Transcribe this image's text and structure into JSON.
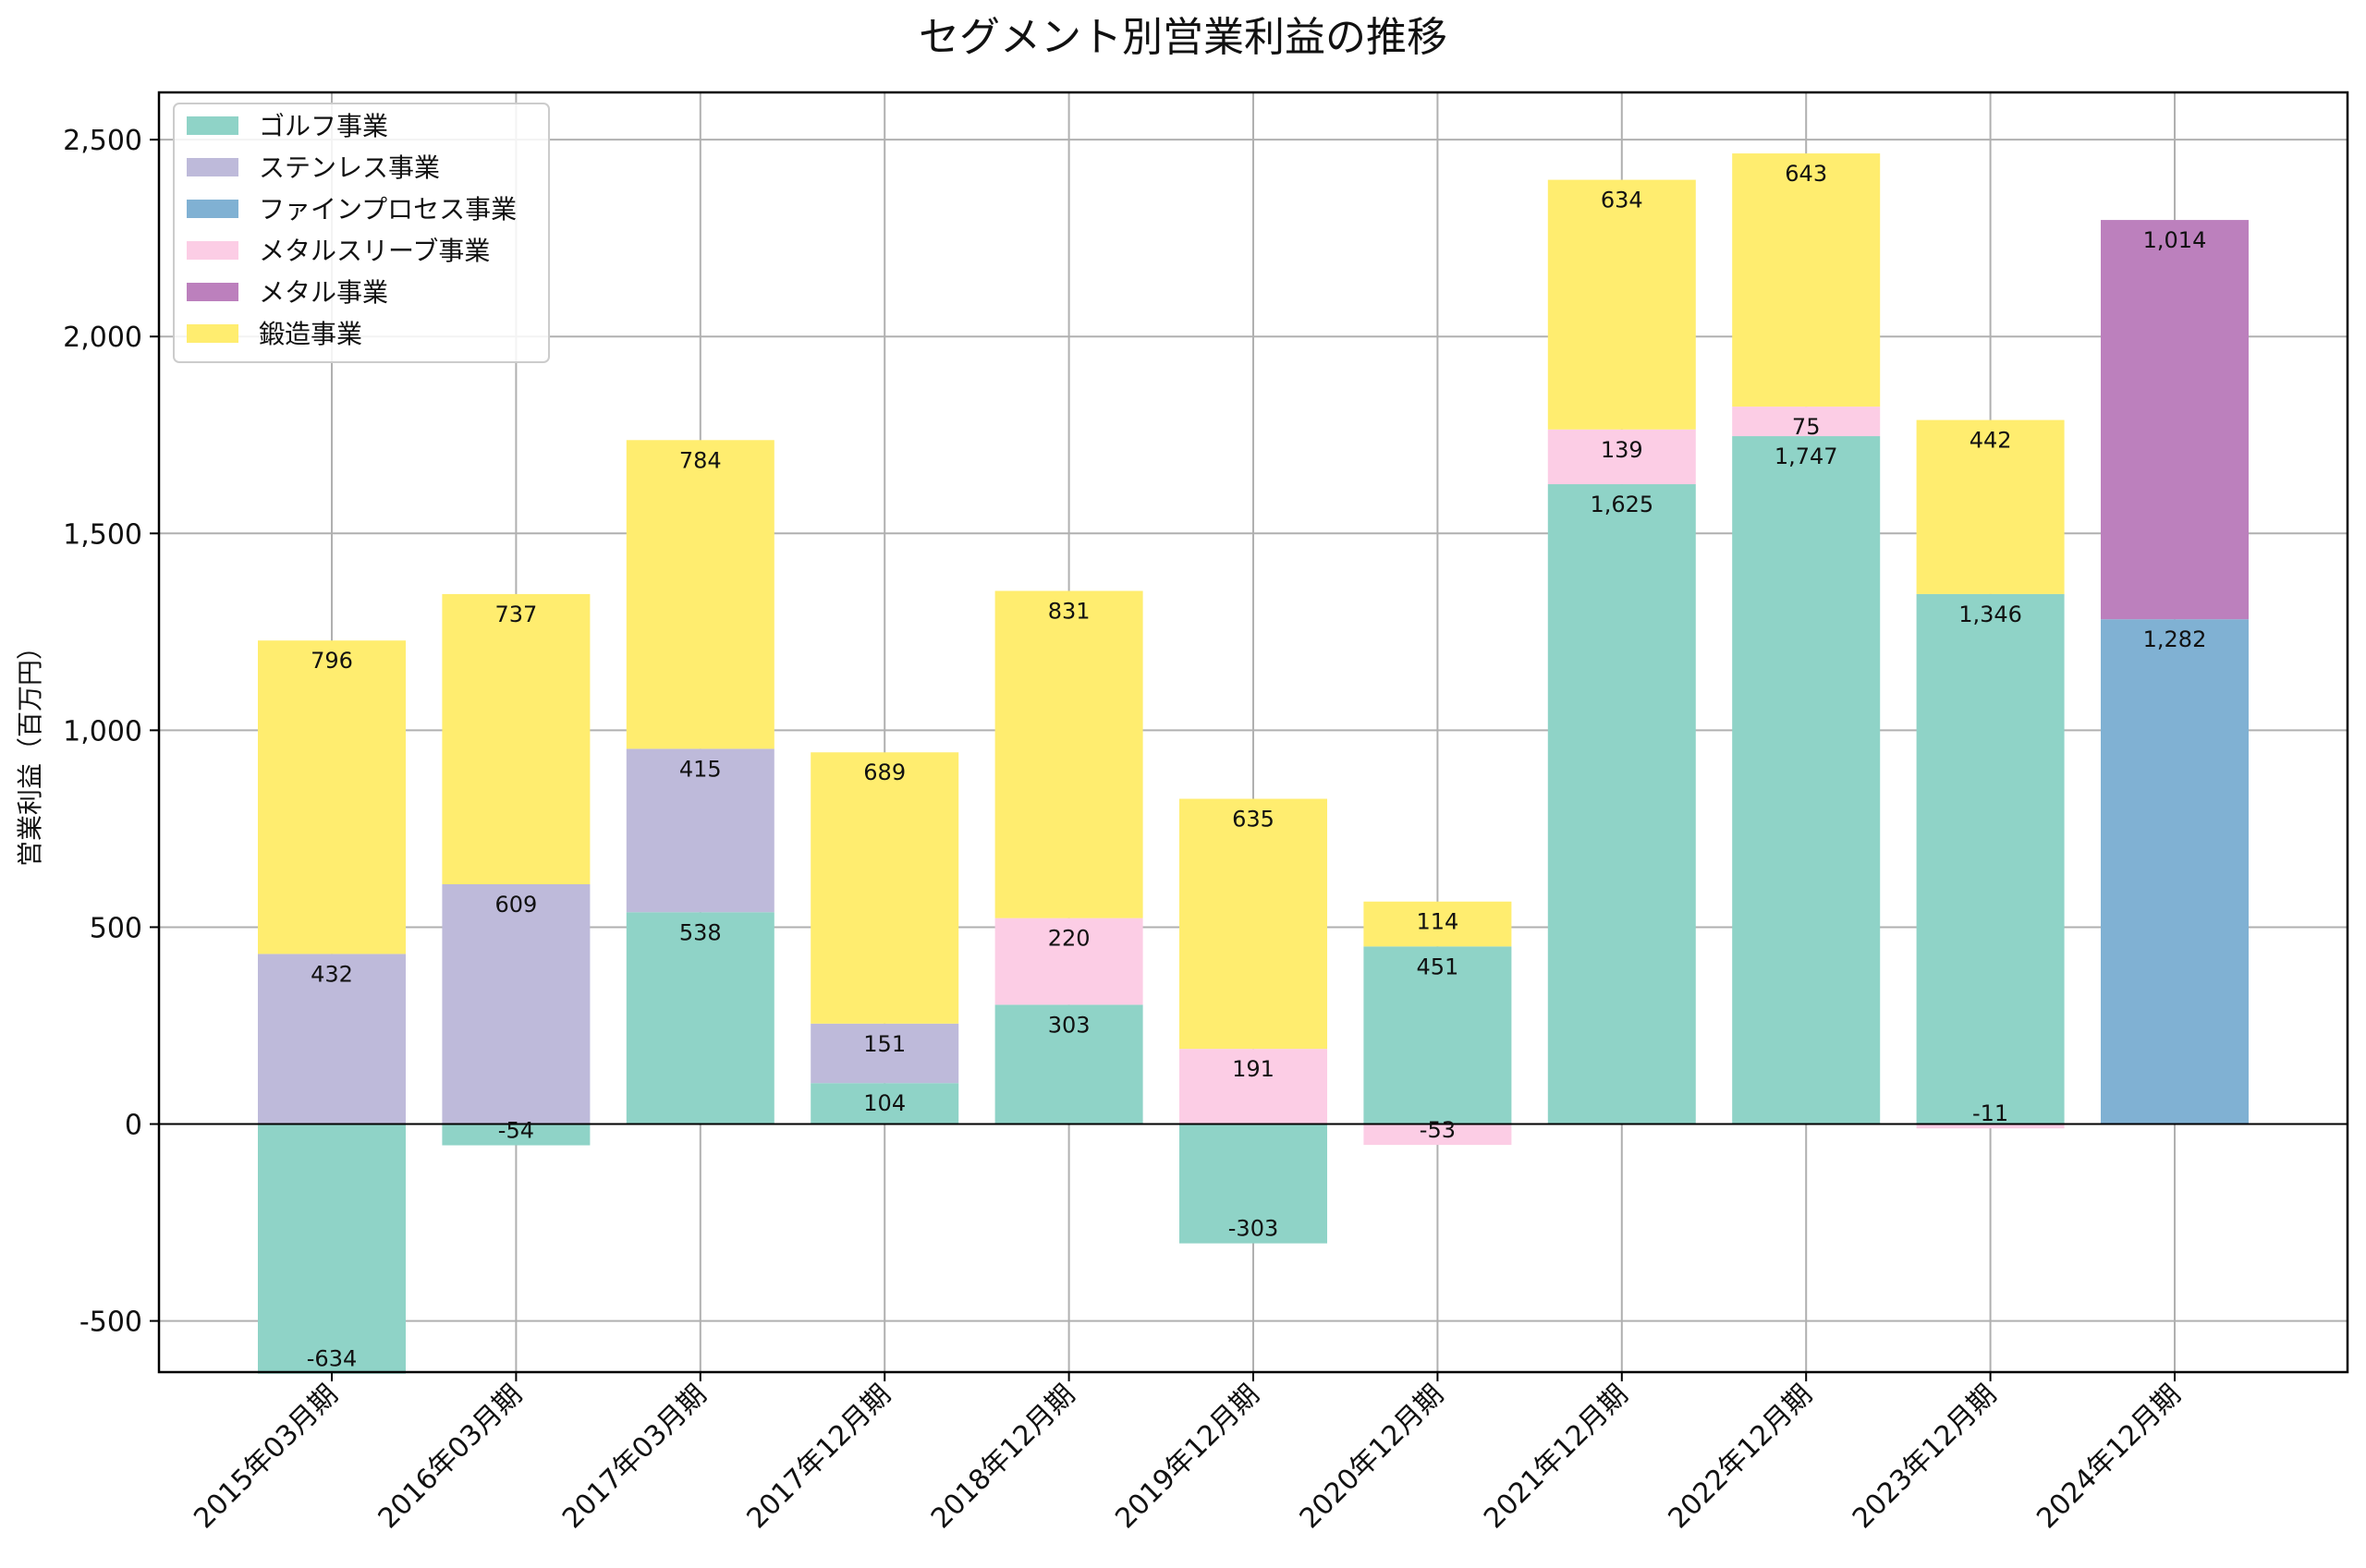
{
  "chart_data": {
    "type": "bar",
    "stacked": true,
    "title": "セグメント別営業利益の推移",
    "xlabel": "",
    "ylabel": "営業利益（百万円）",
    "ylim": [
      -630,
      2620
    ],
    "yticks": [
      -500,
      0,
      500,
      1000,
      1500,
      2000,
      2500
    ],
    "ytick_labels": [
      "-500",
      "0",
      "500",
      "1,000",
      "1,500",
      "2,000",
      "2,500"
    ],
    "grid": true,
    "legend_position": "top-left",
    "categories": [
      "2015年03月期",
      "2016年03月期",
      "2017年03月期",
      "2017年12月期",
      "2018年12月期",
      "2019年12月期",
      "2020年12月期",
      "2021年12月期",
      "2022年12月期",
      "2023年12月期",
      "2024年12月期"
    ],
    "series": [
      {
        "name": "ゴルフ事業",
        "color": "#8fd3c7",
        "values": [
          -634,
          -54,
          538,
          104,
          303,
          -303,
          451,
          1625,
          1747,
          1346,
          null
        ]
      },
      {
        "name": "ステンレス事業",
        "color": "#bebada",
        "values": [
          432,
          609,
          415,
          151,
          null,
          null,
          null,
          null,
          null,
          null,
          null
        ]
      },
      {
        "name": "ファインプロセス事業",
        "color": "#80b1d3",
        "values": [
          null,
          null,
          null,
          null,
          null,
          null,
          null,
          null,
          null,
          null,
          1282
        ]
      },
      {
        "name": "メタルスリーブ事業",
        "color": "#fccde5",
        "values": [
          null,
          null,
          null,
          null,
          220,
          191,
          -53,
          139,
          75,
          -11,
          null
        ]
      },
      {
        "name": "メタル事業",
        "color": "#bc80bd",
        "values": [
          null,
          null,
          null,
          null,
          null,
          null,
          null,
          null,
          null,
          null,
          1014
        ]
      },
      {
        "name": "鍛造事業",
        "color": "#ffed6f",
        "values": [
          796,
          737,
          784,
          689,
          831,
          635,
          114,
          634,
          643,
          442,
          null
        ]
      }
    ]
  }
}
